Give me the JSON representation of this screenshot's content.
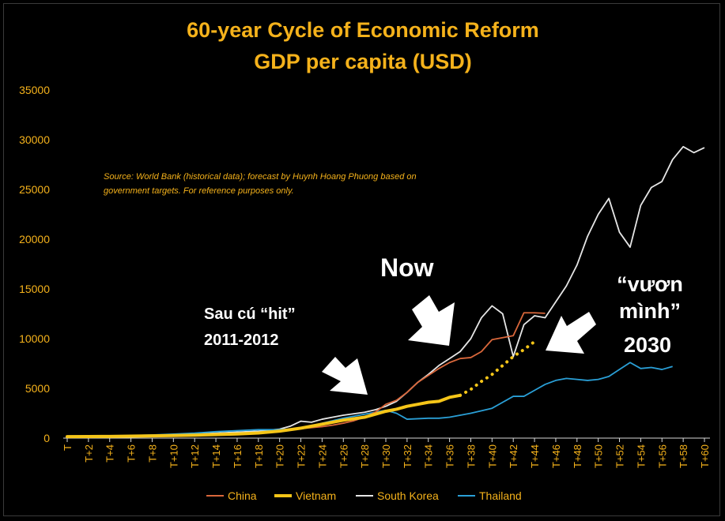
{
  "chart_data": {
    "type": "line",
    "title": "60-year Cycle of Economic Reform",
    "subtitle": "GDP per capita (USD)",
    "note_lines": [
      "Source: World Bank (historical data); forecast by Huynh Hoang Phuong based on",
      "government targets. For reference purposes only."
    ],
    "ylim": [
      0,
      35000
    ],
    "y_ticks": [
      0,
      5000,
      10000,
      15000,
      20000,
      25000,
      30000,
      35000
    ],
    "x_tick_labels": [
      "T",
      "T+2",
      "T+4",
      "T+6",
      "T+8",
      "T+10",
      "T+12",
      "T+14",
      "T+16",
      "T+18",
      "T+20",
      "T+22",
      "T+24",
      "T+26",
      "T+28",
      "T+30",
      "T+32",
      "T+34",
      "T+36",
      "T+38",
      "T+40",
      "T+42",
      "T+44",
      "T+46",
      "T+48",
      "T+50",
      "T+52",
      "T+54",
      "T+56",
      "T+58",
      "T+60"
    ],
    "grid": false,
    "legend_position": "bottom",
    "series": [
      {
        "name": "China",
        "color": "#d9673b",
        "x": [
          0,
          2,
          4,
          6,
          8,
          10,
          12,
          14,
          16,
          18,
          20,
          22,
          24,
          25,
          26,
          27,
          28,
          29,
          30,
          31,
          32,
          33,
          34,
          35,
          36,
          37,
          38,
          39,
          40,
          41,
          42,
          43,
          44,
          45
        ],
        "values": [
          150,
          150,
          180,
          200,
          250,
          300,
          350,
          400,
          450,
          550,
          700,
          950,
          1150,
          1300,
          1500,
          1750,
          2100,
          2600,
          3400,
          3800,
          4600,
          5600,
          6300,
          7000,
          7600,
          8000,
          8100,
          8700,
          9900,
          10100,
          10300,
          12600,
          12600,
          12550
        ]
      },
      {
        "name": "Vietnam",
        "color": "#f5c518",
        "forecast_from_x": 37,
        "x": [
          0,
          2,
          4,
          6,
          8,
          10,
          12,
          14,
          16,
          18,
          20,
          22,
          24,
          26,
          28,
          30,
          31,
          32,
          33,
          34,
          35,
          36,
          37,
          38,
          39,
          40,
          41,
          42,
          43,
          44
        ],
        "values": [
          150,
          160,
          170,
          200,
          230,
          260,
          300,
          360,
          420,
          520,
          700,
          1000,
          1400,
          1800,
          2100,
          2700,
          2900,
          3200,
          3400,
          3600,
          3700,
          4100,
          4300,
          4900,
          5700,
          6400,
          7300,
          8200,
          8900,
          9700
        ]
      },
      {
        "name": "South Korea",
        "color": "#e6e6e6",
        "x": [
          0,
          2,
          4,
          6,
          8,
          10,
          12,
          14,
          16,
          18,
          20,
          21,
          22,
          23,
          24,
          25,
          26,
          27,
          28,
          29,
          30,
          31,
          32,
          33,
          34,
          35,
          36,
          37,
          38,
          39,
          40,
          41,
          42,
          43,
          44,
          45,
          46,
          47,
          48,
          49,
          50,
          51,
          52,
          53,
          54,
          55,
          56,
          57,
          58,
          59,
          60
        ],
        "values": [
          150,
          160,
          180,
          220,
          280,
          350,
          420,
          500,
          600,
          700,
          900,
          1200,
          1700,
          1600,
          1900,
          2100,
          2300,
          2450,
          2600,
          2850,
          3200,
          3700,
          4600,
          5600,
          6400,
          7300,
          8000,
          8700,
          10000,
          12100,
          13300,
          12500,
          8200,
          11400,
          12300,
          12100,
          13700,
          15300,
          17400,
          20300,
          22500,
          24100,
          20700,
          19200,
          23400,
          25200,
          25800,
          28000,
          29300,
          28700,
          29200
        ]
      },
      {
        "name": "Thailand",
        "color": "#2a9fd6",
        "x": [
          0,
          2,
          4,
          6,
          8,
          10,
          12,
          14,
          16,
          18,
          20,
          22,
          24,
          26,
          28,
          30,
          31,
          32,
          33,
          34,
          35,
          36,
          37,
          38,
          39,
          40,
          41,
          42,
          43,
          44,
          45,
          46,
          47,
          48,
          49,
          50,
          51,
          52,
          53,
          54,
          55,
          56,
          57
        ],
        "values": [
          150,
          180,
          200,
          260,
          320,
          400,
          500,
          650,
          750,
          850,
          850,
          950,
          1500,
          2000,
          2400,
          2800,
          2500,
          1900,
          1950,
          2000,
          2000,
          2100,
          2300,
          2500,
          2750,
          3000,
          3600,
          4200,
          4200,
          4800,
          5400,
          5800,
          6000,
          5900,
          5800,
          5900,
          6200,
          6900,
          7600,
          7000,
          7100,
          6900,
          7200
        ]
      }
    ]
  },
  "annotations": {
    "hit_line1": "Sau cú “hit”",
    "hit_line2": "2011-2012",
    "now": "Now",
    "rise_line1": "“vươn",
    "rise_line2": "mình”",
    "rise_line3": "2030"
  }
}
